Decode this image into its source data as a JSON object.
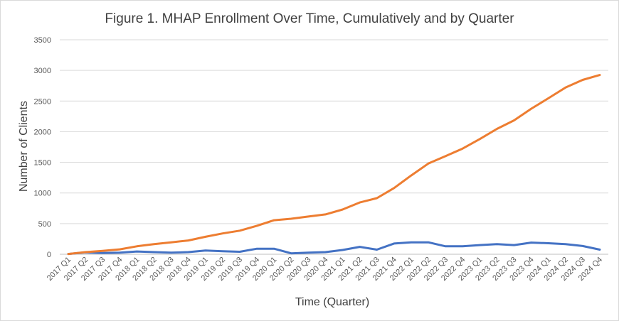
{
  "chart_data": {
    "type": "line",
    "title": "Figure 1. MHAP Enrollment Over Time, Cumulatively and by Quarter",
    "xlabel": "Time (Quarter)",
    "ylabel": "Number of Clients",
    "ylim": [
      0,
      3500
    ],
    "yticks": [
      0,
      500,
      1000,
      1500,
      2000,
      2500,
      3000,
      3500
    ],
    "grid": true,
    "categories": [
      "2017 Q1",
      "2017 Q2",
      "2017 Q3",
      "2017 Q4",
      "2018 Q1",
      "2018 Q2",
      "2018 Q3",
      "2018 Q4",
      "2019 Q1",
      "2019 Q2",
      "2019 Q3",
      "2019 Q4",
      "2020 Q1",
      "2020 Q2",
      "2020 Q3",
      "2020 Q4",
      "2021 Q1",
      "2021 Q2",
      "2021 Q3",
      "2021 Q4",
      "2022 Q1",
      "2022 Q2",
      "2022 Q3",
      "2022 Q4",
      "2023 Q1",
      "2023 Q2",
      "2023 Q3",
      "2023 Q4",
      "2024 Q1",
      "2024 Q2",
      "2024 Q3",
      "2024 Q4"
    ],
    "series": [
      {
        "color": "#4472C4",
        "values": [
          5,
          30,
          20,
          25,
          45,
          35,
          25,
          35,
          60,
          50,
          40,
          90,
          90,
          15,
          25,
          35,
          70,
          120,
          75,
          175,
          195,
          195,
          130,
          130,
          150,
          165,
          150,
          190,
          180,
          165,
          135,
          75
        ]
      },
      {
        "color": "#ED7D31",
        "values": [
          5,
          35,
          55,
          80,
          130,
          165,
          195,
          225,
          285,
          340,
          385,
          465,
          555,
          580,
          615,
          650,
          730,
          845,
          915,
          1080,
          1285,
          1480,
          1600,
          1725,
          1880,
          2045,
          2185,
          2375,
          2545,
          2720,
          2845,
          2925
        ]
      }
    ]
  }
}
